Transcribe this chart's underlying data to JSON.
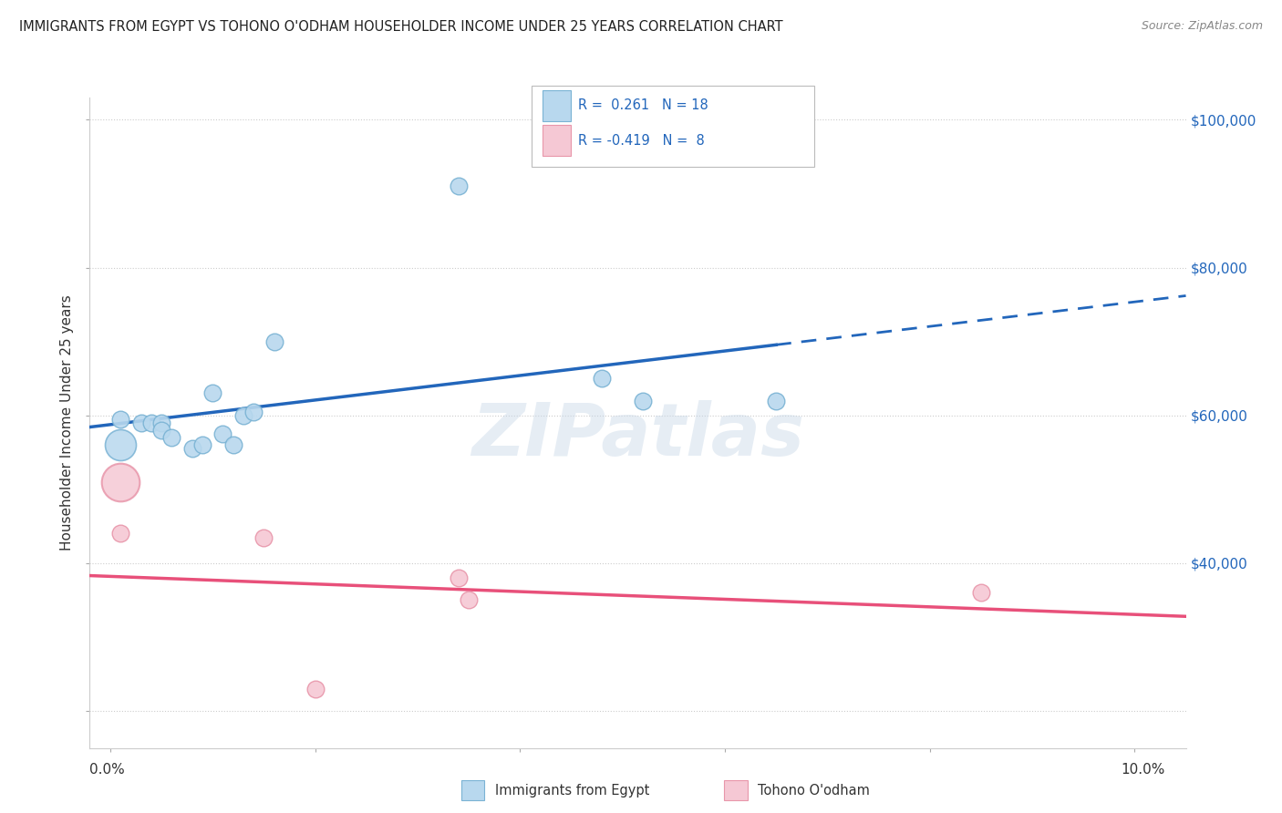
{
  "title": "IMMIGRANTS FROM EGYPT VS TOHONO O'ODHAM HOUSEHOLDER INCOME UNDER 25 YEARS CORRELATION CHART",
  "source": "Source: ZipAtlas.com",
  "ylabel": "Householder Income Under 25 years",
  "y_min": 15000,
  "y_max": 103000,
  "x_min": -0.002,
  "x_max": 0.105,
  "egypt_color": "#7ab3d4",
  "egypt_fill": "#b8d8ee",
  "tohono_color": "#e896aa",
  "tohono_fill": "#f5c8d4",
  "line_egypt_color": "#2266bb",
  "line_tohono_color": "#e8507a",
  "egypt_x": [
    0.001,
    0.003,
    0.004,
    0.005,
    0.005,
    0.006,
    0.008,
    0.009,
    0.01,
    0.011,
    0.012,
    0.013,
    0.014,
    0.016,
    0.034,
    0.048,
    0.052,
    0.065
  ],
  "egypt_y": [
    59500,
    59000,
    59000,
    59000,
    58000,
    57000,
    55500,
    56000,
    63000,
    57500,
    56000,
    60000,
    60500,
    70000,
    91000,
    65000,
    62000,
    62000
  ],
  "egypt_large_x": [
    0.001
  ],
  "egypt_large_y": [
    56000
  ],
  "tohono_x": [
    0.001,
    0.015,
    0.02,
    0.034,
    0.035,
    0.085
  ],
  "tohono_y": [
    44000,
    43500,
    23000,
    38000,
    35000,
    36000
  ],
  "tohono_large_x": [
    0.001
  ],
  "tohono_large_y": [
    51000
  ],
  "watermark": "ZIPatlas",
  "y_ticks": [
    20000,
    40000,
    60000,
    80000,
    100000
  ],
  "right_labels": [
    "",
    "$40,000",
    "$60,000",
    "$80,000",
    "$100,000"
  ],
  "right_label_color": "#2266bb"
}
